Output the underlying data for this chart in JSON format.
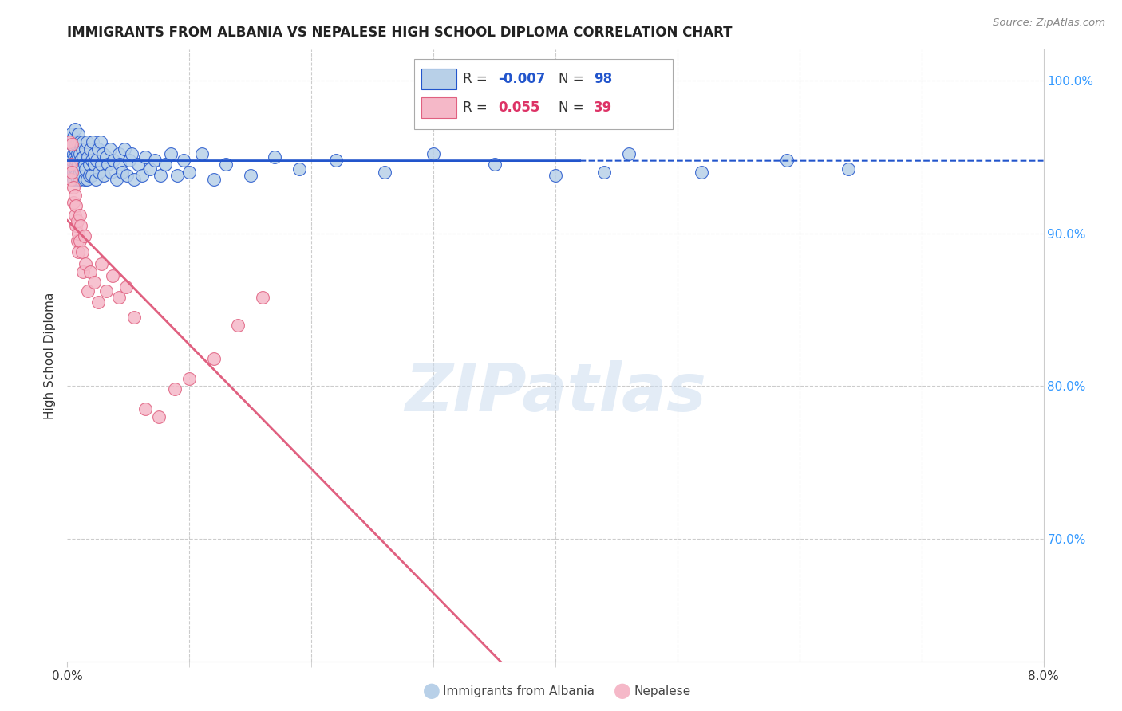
{
  "title": "IMMIGRANTS FROM ALBANIA VS NEPALESE HIGH SCHOOL DIPLOMA CORRELATION CHART",
  "source": "Source: ZipAtlas.com",
  "ylabel": "High School Diploma",
  "right_ytick_vals": [
    0.7,
    0.8,
    0.9,
    1.0
  ],
  "legend_blue_r": "-0.007",
  "legend_blue_n": "98",
  "legend_pink_r": "0.055",
  "legend_pink_n": "39",
  "blue_color": "#b8d0e8",
  "pink_color": "#f5b8c8",
  "blue_line_color": "#2255cc",
  "pink_line_color": "#e06080",
  "watermark": "ZIPatlas",
  "blue_scatter_x": [
    0.0002,
    0.0003,
    0.0003,
    0.0004,
    0.0004,
    0.0005,
    0.0005,
    0.0005,
    0.0005,
    0.0006,
    0.0006,
    0.0006,
    0.0006,
    0.0007,
    0.0007,
    0.0007,
    0.0007,
    0.0008,
    0.0008,
    0.0008,
    0.0009,
    0.0009,
    0.0009,
    0.001,
    0.001,
    0.001,
    0.001,
    0.0011,
    0.0011,
    0.0012,
    0.0012,
    0.0013,
    0.0013,
    0.0014,
    0.0014,
    0.0015,
    0.0015,
    0.0016,
    0.0016,
    0.0017,
    0.0018,
    0.0018,
    0.0019,
    0.002,
    0.002,
    0.0021,
    0.0022,
    0.0022,
    0.0023,
    0.0024,
    0.0025,
    0.0026,
    0.0027,
    0.0028,
    0.0029,
    0.003,
    0.0032,
    0.0033,
    0.0035,
    0.0036,
    0.0038,
    0.004,
    0.0042,
    0.0043,
    0.0045,
    0.0047,
    0.0049,
    0.0051,
    0.0053,
    0.0055,
    0.0058,
    0.0061,
    0.0064,
    0.0068,
    0.0072,
    0.0076,
    0.008,
    0.0085,
    0.009,
    0.0095,
    0.01,
    0.011,
    0.012,
    0.013,
    0.015,
    0.017,
    0.019,
    0.022,
    0.026,
    0.03,
    0.035,
    0.04,
    0.046,
    0.052,
    0.059,
    0.064,
    0.039,
    0.044
  ],
  "blue_scatter_y": [
    0.96,
    0.945,
    0.965,
    0.948,
    0.958,
    0.94,
    0.952,
    0.963,
    0.935,
    0.95,
    0.942,
    0.955,
    0.968,
    0.945,
    0.938,
    0.958,
    0.948,
    0.96,
    0.935,
    0.952,
    0.945,
    0.938,
    0.965,
    0.94,
    0.952,
    0.935,
    0.96,
    0.948,
    0.942,
    0.955,
    0.938,
    0.95,
    0.96,
    0.945,
    0.935,
    0.955,
    0.942,
    0.96,
    0.935,
    0.95,
    0.945,
    0.938,
    0.955,
    0.948,
    0.938,
    0.96,
    0.945,
    0.952,
    0.935,
    0.948,
    0.955,
    0.94,
    0.96,
    0.945,
    0.952,
    0.938,
    0.95,
    0.945,
    0.955,
    0.94,
    0.948,
    0.935,
    0.952,
    0.945,
    0.94,
    0.955,
    0.938,
    0.948,
    0.952,
    0.935,
    0.945,
    0.938,
    0.95,
    0.942,
    0.948,
    0.938,
    0.945,
    0.952,
    0.938,
    0.948,
    0.94,
    0.952,
    0.935,
    0.945,
    0.938,
    0.95,
    0.942,
    0.948,
    0.94,
    0.952,
    0.945,
    0.938,
    0.952,
    0.94,
    0.948,
    0.942,
    1.0,
    0.94
  ],
  "pink_scatter_x": [
    0.0002,
    0.0003,
    0.0003,
    0.0004,
    0.0004,
    0.0005,
    0.0005,
    0.0006,
    0.0006,
    0.0007,
    0.0007,
    0.0008,
    0.0008,
    0.0009,
    0.0009,
    0.001,
    0.001,
    0.0011,
    0.0012,
    0.0013,
    0.0014,
    0.0015,
    0.0017,
    0.0019,
    0.0022,
    0.0025,
    0.0028,
    0.0032,
    0.0037,
    0.0042,
    0.0048,
    0.0055,
    0.0064,
    0.0075,
    0.0088,
    0.01,
    0.012,
    0.014,
    0.016
  ],
  "pink_scatter_y": [
    0.96,
    0.945,
    0.935,
    0.94,
    0.958,
    0.92,
    0.93,
    0.912,
    0.925,
    0.905,
    0.918,
    0.895,
    0.908,
    0.9,
    0.888,
    0.912,
    0.895,
    0.905,
    0.888,
    0.875,
    0.898,
    0.88,
    0.862,
    0.875,
    0.868,
    0.855,
    0.88,
    0.862,
    0.872,
    0.858,
    0.865,
    0.845,
    0.785,
    0.78,
    0.798,
    0.805,
    0.818,
    0.84,
    0.858
  ],
  "xlim": [
    0.0,
    0.08
  ],
  "ylim": [
    0.62,
    1.02
  ],
  "x_minor_ticks": [
    0.01,
    0.02,
    0.03,
    0.04,
    0.05,
    0.06,
    0.07
  ]
}
